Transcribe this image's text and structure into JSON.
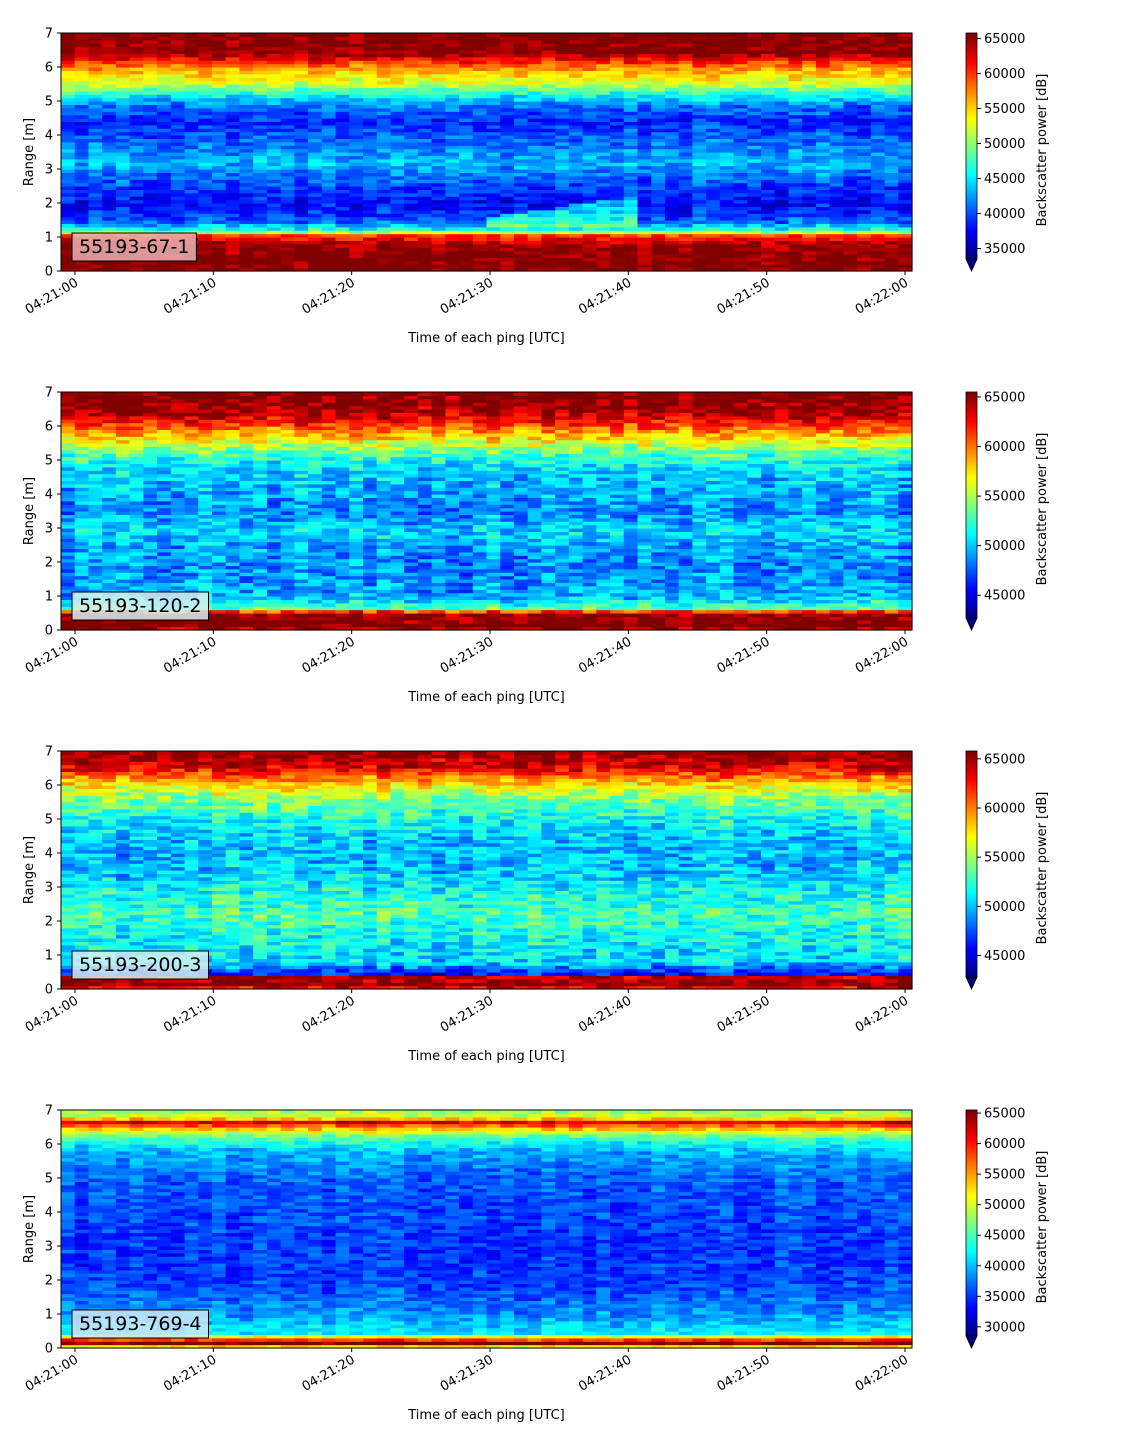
{
  "chart_data": [
    {
      "type": "heatmap",
      "tag": "55193-67-1",
      "tag_color": "#e7b2b4",
      "xlabel": "Time of each ping [UTC]",
      "ylabel": "Range [m]",
      "x_ticks": [
        "04:21:00",
        "04:21:10",
        "04:21:20",
        "04:21:30",
        "04:21:40",
        "04:21:50",
        "04:22:00"
      ],
      "y_ticks": [
        "0",
        "1",
        "2",
        "3",
        "4",
        "5",
        "6",
        "7"
      ],
      "ylim": [
        0,
        7
      ],
      "colorbar": {
        "label": "Backscatter power [dB]",
        "ticks": [
          "35000",
          "40000",
          "45000",
          "50000",
          "55000",
          "60000",
          "65000"
        ],
        "range": [
          33500,
          65800
        ],
        "extend": "min"
      },
      "profile": [
        {
          "r": 0.0,
          "v": 66000
        },
        {
          "r": 0.25,
          "v": 66000
        },
        {
          "r": 0.8,
          "v": 65000
        },
        {
          "r": 1.05,
          "v": 60000
        },
        {
          "r": 1.2,
          "v": 47000
        },
        {
          "r": 1.5,
          "v": 40000
        },
        {
          "r": 2.0,
          "v": 37500
        },
        {
          "r": 2.6,
          "v": 40000
        },
        {
          "r": 3.2,
          "v": 43500
        },
        {
          "r": 3.8,
          "v": 41000
        },
        {
          "r": 4.4,
          "v": 38500
        },
        {
          "r": 4.9,
          "v": 41500
        },
        {
          "r": 5.2,
          "v": 46000
        },
        {
          "r": 5.5,
          "v": 52000
        },
        {
          "r": 5.9,
          "v": 56000
        },
        {
          "r": 6.2,
          "v": 61000
        },
        {
          "r": 6.4,
          "v": 65500
        },
        {
          "r": 7.0,
          "v": 66000
        }
      ],
      "noise": 2800
    },
    {
      "type": "heatmap",
      "tag": "55193-120-2",
      "tag_color": "#d6eef2",
      "xlabel": "Time of each ping [UTC]",
      "ylabel": "Range [m]",
      "x_ticks": [
        "04:21:00",
        "04:21:10",
        "04:21:20",
        "04:21:30",
        "04:21:40",
        "04:21:50",
        "04:22:00"
      ],
      "y_ticks": [
        "0",
        "1",
        "2",
        "3",
        "4",
        "5",
        "6",
        "7"
      ],
      "ylim": [
        0,
        7
      ],
      "colorbar": {
        "label": "Backscatter power [dB]",
        "ticks": [
          "45000",
          "50000",
          "55000",
          "60000",
          "65000"
        ],
        "range": [
          42700,
          65500
        ],
        "extend": "min"
      },
      "profile": [
        {
          "r": 0.0,
          "v": 63000
        },
        {
          "r": 0.1,
          "v": 66000
        },
        {
          "r": 0.5,
          "v": 65500
        },
        {
          "r": 0.65,
          "v": 53000
        },
        {
          "r": 1.0,
          "v": 49500
        },
        {
          "r": 1.8,
          "v": 48500
        },
        {
          "r": 2.4,
          "v": 49000
        },
        {
          "r": 2.9,
          "v": 50500
        },
        {
          "r": 3.5,
          "v": 48500
        },
        {
          "r": 4.2,
          "v": 49500
        },
        {
          "r": 4.8,
          "v": 50500
        },
        {
          "r": 5.2,
          "v": 53000
        },
        {
          "r": 5.6,
          "v": 57000
        },
        {
          "r": 6.0,
          "v": 61000
        },
        {
          "r": 6.4,
          "v": 64500
        },
        {
          "r": 7.0,
          "v": 66000
        }
      ],
      "noise": 2600
    },
    {
      "type": "heatmap",
      "tag": "55193-200-3",
      "tag_color": "#d7f0ee",
      "xlabel": "Time of each ping [UTC]",
      "ylabel": "Range [m]",
      "x_ticks": [
        "04:21:00",
        "04:21:10",
        "04:21:20",
        "04:21:30",
        "04:21:40",
        "04:21:50",
        "04:22:00"
      ],
      "y_ticks": [
        "0",
        "1",
        "2",
        "3",
        "4",
        "5",
        "6",
        "7"
      ],
      "ylim": [
        0,
        7
      ],
      "colorbar": {
        "label": "Backscatter power [dB]",
        "ticks": [
          "45000",
          "50000",
          "55000",
          "60000",
          "65000"
        ],
        "range": [
          42800,
          65800
        ],
        "extend": "min"
      },
      "profile": [
        {
          "r": 0.0,
          "v": 62000
        },
        {
          "r": 0.15,
          "v": 66000
        },
        {
          "r": 0.35,
          "v": 64500
        },
        {
          "r": 0.45,
          "v": 46000
        },
        {
          "r": 0.8,
          "v": 50500
        },
        {
          "r": 1.5,
          "v": 51500
        },
        {
          "r": 2.2,
          "v": 53000
        },
        {
          "r": 2.8,
          "v": 52000
        },
        {
          "r": 3.5,
          "v": 50000
        },
        {
          "r": 4.3,
          "v": 50000
        },
        {
          "r": 5.0,
          "v": 51500
        },
        {
          "r": 5.6,
          "v": 54500
        },
        {
          "r": 6.1,
          "v": 58500
        },
        {
          "r": 6.5,
          "v": 63500
        },
        {
          "r": 7.0,
          "v": 66000
        }
      ],
      "noise": 2700
    },
    {
      "type": "heatmap",
      "tag": "55193-769-4",
      "tag_color": "#cfe6f7",
      "xlabel": "Time of each ping [UTC]",
      "ylabel": "Range [m]",
      "x_ticks": [
        "04:21:00",
        "04:21:10",
        "04:21:20",
        "04:21:30",
        "04:21:40",
        "04:21:50",
        "04:22:00"
      ],
      "y_ticks": [
        "0",
        "1",
        "2",
        "3",
        "4",
        "5",
        "6",
        "7"
      ],
      "ylim": [
        0,
        7
      ],
      "colorbar": {
        "label": "Backscatter power [dB]",
        "ticks": [
          "30000",
          "35000",
          "40000",
          "45000",
          "50000",
          "55000",
          "60000",
          "65000"
        ],
        "range": [
          28500,
          65500
        ],
        "extend": "min"
      },
      "profile": [
        {
          "r": 0.0,
          "v": 45000
        },
        {
          "r": 0.15,
          "v": 66000
        },
        {
          "r": 0.3,
          "v": 55000
        },
        {
          "r": 0.45,
          "v": 42000
        },
        {
          "r": 1.0,
          "v": 38500
        },
        {
          "r": 2.0,
          "v": 35000
        },
        {
          "r": 3.0,
          "v": 35000
        },
        {
          "r": 4.0,
          "v": 35500
        },
        {
          "r": 5.0,
          "v": 36500
        },
        {
          "r": 5.8,
          "v": 39500
        },
        {
          "r": 6.2,
          "v": 45000
        },
        {
          "r": 6.5,
          "v": 55000
        },
        {
          "r": 6.65,
          "v": 62000
        },
        {
          "r": 6.8,
          "v": 50000
        },
        {
          "r": 7.0,
          "v": 48000
        }
      ],
      "noise": 2800
    }
  ]
}
